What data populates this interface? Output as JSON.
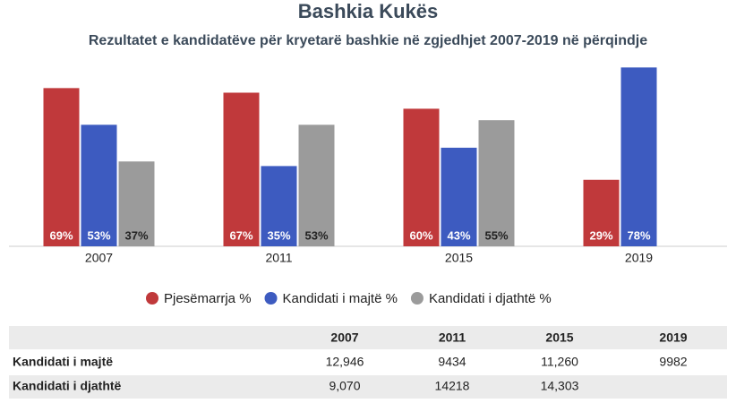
{
  "chart_data": {
    "type": "bar",
    "title": "Bashkia Kukës",
    "subtitle": "Rezultatet e kandidatëve për kryetarë bashkie në zgjedhjet 2007-2019 në përqindje",
    "categories": [
      "2007",
      "2011",
      "2015",
      "2019"
    ],
    "series": [
      {
        "name": "Pjesëmarrja %",
        "color": "#c0393b",
        "values": [
          69,
          67,
          60,
          29
        ],
        "value_labels": [
          "69%",
          "67%",
          "60%",
          "29%"
        ]
      },
      {
        "name": "Kandidati i majtë %",
        "color": "#3d5bc0",
        "values": [
          53,
          35,
          43,
          78
        ],
        "value_labels": [
          "53%",
          "35%",
          "43%",
          "78%"
        ]
      },
      {
        "name": "Kandidati i djathtë %",
        "color": "#9b9b9b",
        "values": [
          37,
          53,
          55,
          null
        ],
        "value_labels": [
          "37%",
          "53%",
          "55%",
          null
        ]
      }
    ]
  },
  "table": {
    "columns": [
      "2007",
      "2011",
      "2015",
      "2019"
    ],
    "rows": [
      {
        "label": "Kandidati i majtë",
        "cells": [
          "12,946",
          "9434",
          "11,260",
          "9982"
        ]
      },
      {
        "label": "Kandidati i djathtë",
        "cells": [
          "9,070",
          "14218",
          "14,303",
          null
        ]
      }
    ]
  }
}
